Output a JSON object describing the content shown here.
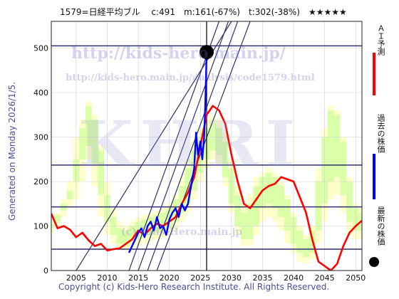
{
  "header": {
    "title": "1579=日経平均ブル　 c:491　m:161(-67%)　t:302(-38%)　★★★★★"
  },
  "side_caption": "Generated on Monday 2026/1/5.",
  "footer": {
    "copyright": "Copyright (c) Kids-Hero Research Institute. All Rights Reserved."
  },
  "watermarks": {
    "url": "http://kids-hero.main.jp/",
    "page": "http://kids-hero.main.jp/analysis/code1579.html",
    "logo": "KHRI",
    "cp": "(c) Kids-Hero.main.jp"
  },
  "legend": {
    "ai_forecast": "ＡＩ予測",
    "past_price": "過去の株価",
    "latest_price": "最新の株価"
  },
  "colors": {
    "ai_forecast": "#ff0000",
    "past_price": "#0000ff",
    "latest_price": "#000000",
    "band_fill": "#88ff88",
    "band_fill_light": "#ffffaa",
    "hlines": "#303070"
  },
  "chart_data": {
    "type": "line",
    "xlim": [
      2001,
      2051
    ],
    "ylim": [
      0,
      560
    ],
    "xticks": [
      2005,
      2010,
      2015,
      2020,
      2025,
      2030,
      2035,
      2040,
      2045,
      2050
    ],
    "yticks": [
      0,
      100,
      200,
      300,
      400,
      500
    ],
    "grid": true,
    "latest": {
      "x": 2026.0,
      "y": 491
    },
    "current_marker_x": 2026.0,
    "hlines": [
      505,
      237,
      143,
      48
    ],
    "trend_lines": [
      {
        "x": [
          2013.5,
          2028.0
        ],
        "y": [
          0,
          560
        ]
      },
      {
        "x": [
          2015.0,
          2029.5
        ],
        "y": [
          0,
          560
        ]
      },
      {
        "x": [
          2016.5,
          2031.0
        ],
        "y": [
          0,
          560
        ]
      },
      {
        "x": [
          2018.0,
          2033.0
        ],
        "y": [
          0,
          560
        ]
      },
      {
        "x": [
          2005.0,
          2030.0
        ],
        "y": [
          0,
          560
        ]
      }
    ],
    "series": [
      {
        "role": "ai_forecast",
        "x": [
          2001,
          2002,
          2003,
          2004,
          2005,
          2006,
          2007,
          2008,
          2009,
          2010,
          2011,
          2012,
          2013,
          2014,
          2015,
          2016,
          2017,
          2018,
          2019,
          2020,
          2021,
          2022,
          2023,
          2024,
          2025,
          2026,
          2027,
          2028,
          2029,
          2030,
          2031,
          2032,
          2033,
          2034,
          2035,
          2036,
          2037,
          2038,
          2039,
          2040,
          2041,
          2042,
          2043,
          2044,
          2045,
          2046,
          2047,
          2048,
          2049,
          2050,
          2051
        ],
        "y": [
          128,
          95,
          100,
          92,
          75,
          85,
          68,
          55,
          60,
          45,
          48,
          50,
          60,
          70,
          90,
          80,
          95,
          105,
          100,
          110,
          120,
          150,
          175,
          210,
          280,
          350,
          370,
          360,
          330,
          260,
          200,
          150,
          140,
          160,
          180,
          190,
          195,
          210,
          205,
          200,
          165,
          130,
          70,
          20,
          10,
          0,
          15,
          55,
          85,
          100,
          112
        ]
      },
      {
        "role": "past_price",
        "x": [
          2013.5,
          2014,
          2014.5,
          2015,
          2015.5,
          2016,
          2016.5,
          2017,
          2017.5,
          2018,
          2018.5,
          2019,
          2019.5,
          2020,
          2020.5,
          2021,
          2021.5,
          2022,
          2022.5,
          2023,
          2023.5,
          2024,
          2024.3,
          2024.6,
          2025,
          2025.3,
          2025.6,
          2025.8,
          2026.0
        ],
        "y": [
          40,
          55,
          70,
          85,
          95,
          75,
          100,
          110,
          90,
          120,
          95,
          100,
          80,
          115,
          130,
          140,
          120,
          150,
          135,
          150,
          190,
          230,
          310,
          260,
          290,
          250,
          300,
          380,
          491
        ]
      }
    ],
    "band_columns": [
      {
        "x": 2001,
        "bands": [
          [
            95,
            105,
            0
          ],
          [
            85,
            110,
            1
          ]
        ]
      },
      {
        "x": 2002,
        "bands": [
          [
            110,
            125,
            0
          ],
          [
            100,
            130,
            1
          ]
        ]
      },
      {
        "x": 2003,
        "bands": [
          [
            135,
            150,
            0
          ],
          [
            120,
            160,
            1
          ]
        ]
      },
      {
        "x": 2004,
        "bands": [
          [
            160,
            180,
            0
          ],
          [
            140,
            200,
            1
          ]
        ]
      },
      {
        "x": 2005,
        "bands": [
          [
            200,
            250,
            0
          ],
          [
            160,
            300,
            1
          ]
        ]
      },
      {
        "x": 2006,
        "bands": [
          [
            250,
            320,
            0
          ],
          [
            200,
            340,
            1
          ]
        ]
      },
      {
        "x": 2007,
        "bands": [
          [
            280,
            370,
            0
          ],
          [
            250,
            380,
            1
          ]
        ]
      },
      {
        "x": 2008,
        "bands": [
          [
            240,
            340,
            0
          ],
          [
            190,
            350,
            1
          ]
        ]
      },
      {
        "x": 2009,
        "bands": [
          [
            170,
            270,
            0
          ],
          [
            120,
            280,
            1
          ]
        ]
      },
      {
        "x": 2010,
        "bands": [
          [
            110,
            170,
            0
          ],
          [
            80,
            200,
            1
          ]
        ]
      },
      {
        "x": 2011,
        "bands": [
          [
            80,
            120,
            0
          ],
          [
            60,
            140,
            1
          ]
        ]
      },
      {
        "x": 2012,
        "bands": [
          [
            60,
            95,
            0
          ],
          [
            50,
            110,
            1
          ]
        ]
      },
      {
        "x": 2013,
        "bands": [
          [
            55,
            90,
            0
          ],
          [
            45,
            100,
            1
          ]
        ]
      },
      {
        "x": 2014,
        "bands": [
          [
            60,
            100,
            0
          ],
          [
            50,
            110,
            1
          ]
        ]
      },
      {
        "x": 2015,
        "bands": [
          [
            70,
            110,
            0
          ],
          [
            55,
            120,
            1
          ]
        ]
      },
      {
        "x": 2016,
        "bands": [
          [
            75,
            115,
            0
          ],
          [
            60,
            125,
            1
          ]
        ]
      },
      {
        "x": 2017,
        "bands": [
          [
            80,
            120,
            0
          ],
          [
            65,
            130,
            1
          ]
        ]
      },
      {
        "x": 2018,
        "bands": [
          [
            85,
            125,
            0
          ],
          [
            70,
            135,
            1
          ]
        ]
      },
      {
        "x": 2019,
        "bands": [
          [
            90,
            130,
            0
          ],
          [
            75,
            140,
            1
          ]
        ]
      },
      {
        "x": 2020,
        "bands": [
          [
            95,
            140,
            0
          ],
          [
            80,
            150,
            1
          ]
        ]
      },
      {
        "x": 2021,
        "bands": [
          [
            110,
            160,
            0
          ],
          [
            90,
            170,
            1
          ]
        ]
      },
      {
        "x": 2022,
        "bands": [
          [
            130,
            190,
            0
          ],
          [
            110,
            210,
            1
          ]
        ]
      },
      {
        "x": 2023,
        "bands": [
          [
            150,
            230,
            0
          ],
          [
            130,
            250,
            1
          ]
        ]
      },
      {
        "x": 2024,
        "bands": [
          [
            180,
            270,
            0
          ],
          [
            160,
            290,
            1
          ]
        ]
      },
      {
        "x": 2025,
        "bands": [
          [
            220,
            300,
            0
          ],
          [
            200,
            320,
            1
          ]
        ]
      },
      {
        "x": 2026,
        "bands": [
          [
            250,
            320,
            0
          ],
          [
            230,
            340,
            1
          ]
        ]
      },
      {
        "x": 2027,
        "bands": [
          [
            270,
            330,
            0
          ],
          [
            250,
            350,
            1
          ]
        ]
      },
      {
        "x": 2028,
        "bands": [
          [
            260,
            320,
            0
          ],
          [
            240,
            340,
            1
          ]
        ]
      },
      {
        "x": 2029,
        "bands": [
          [
            210,
            290,
            0
          ],
          [
            190,
            310,
            1
          ]
        ]
      },
      {
        "x": 2030,
        "bands": [
          [
            150,
            230,
            0
          ],
          [
            130,
            250,
            1
          ]
        ]
      },
      {
        "x": 2031,
        "bands": [
          [
            100,
            170,
            0
          ],
          [
            80,
            190,
            1
          ]
        ]
      },
      {
        "x": 2032,
        "bands": [
          [
            70,
            130,
            0
          ],
          [
            55,
            150,
            1
          ]
        ]
      },
      {
        "x": 2033,
        "bands": [
          [
            70,
            150,
            0
          ],
          [
            55,
            170,
            1
          ]
        ]
      },
      {
        "x": 2034,
        "bands": [
          [
            100,
            190,
            0
          ],
          [
            80,
            210,
            1
          ]
        ]
      },
      {
        "x": 2035,
        "bands": [
          [
            140,
            210,
            0
          ],
          [
            110,
            220,
            1
          ]
        ]
      },
      {
        "x": 2036,
        "bands": [
          [
            150,
            220,
            0
          ],
          [
            120,
            230,
            1
          ]
        ]
      },
      {
        "x": 2037,
        "bands": [
          [
            140,
            210,
            0
          ],
          [
            110,
            220,
            1
          ]
        ]
      },
      {
        "x": 2038,
        "bands": [
          [
            120,
            190,
            0
          ],
          [
            90,
            200,
            1
          ]
        ]
      },
      {
        "x": 2039,
        "bands": [
          [
            90,
            160,
            0
          ],
          [
            60,
            170,
            1
          ]
        ]
      },
      {
        "x": 2040,
        "bands": [
          [
            60,
            120,
            0
          ],
          [
            40,
            130,
            1
          ]
        ]
      },
      {
        "x": 2041,
        "bands": [
          [
            40,
            90,
            0
          ],
          [
            20,
            100,
            1
          ]
        ]
      },
      {
        "x": 2042,
        "bands": [
          [
            30,
            70,
            0
          ],
          [
            15,
            80,
            1
          ]
        ]
      },
      {
        "x": 2043,
        "bands": [
          [
            40,
            90,
            0
          ],
          [
            25,
            100,
            1
          ]
        ]
      },
      {
        "x": 2044,
        "bands": [
          [
            90,
            200,
            0
          ],
          [
            60,
            230,
            1
          ]
        ]
      },
      {
        "x": 2045,
        "bands": [
          [
            150,
            300,
            0
          ],
          [
            110,
            320,
            1
          ]
        ]
      },
      {
        "x": 2046,
        "bands": [
          [
            200,
            360,
            0
          ],
          [
            160,
            370,
            1
          ]
        ]
      },
      {
        "x": 2047,
        "bands": [
          [
            210,
            350,
            0
          ],
          [
            170,
            360,
            1
          ]
        ]
      },
      {
        "x": 2048,
        "bands": [
          [
            170,
            290,
            0
          ],
          [
            130,
            300,
            1
          ]
        ]
      },
      {
        "x": 2049,
        "bands": [
          [
            110,
            200,
            0
          ],
          [
            80,
            210,
            1
          ]
        ]
      },
      {
        "x": 2050,
        "bands": [
          [
            90,
            140,
            0
          ],
          [
            70,
            150,
            1
          ]
        ]
      },
      {
        "x": 2051,
        "bands": [
          [
            90,
            130,
            0
          ],
          [
            70,
            140,
            1
          ]
        ]
      }
    ]
  }
}
